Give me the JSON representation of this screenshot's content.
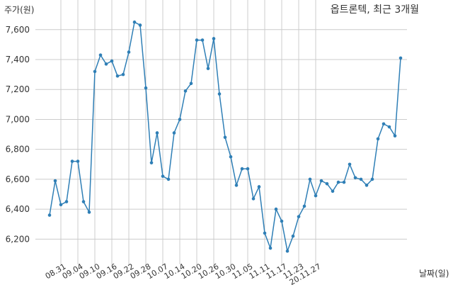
{
  "chart_data": {
    "type": "line",
    "title": "옵트론텍, 최근 3개월",
    "ylabel": "주가(원)",
    "xlabel": "날짜(일)",
    "ylim": [
      6050,
      7760
    ],
    "yticks": [
      6200,
      6400,
      6600,
      6800,
      7000,
      7200,
      7400,
      7600
    ],
    "ytick_labels": [
      "6,200",
      "6,400",
      "6,600",
      "6,800",
      "7,000",
      "7,200",
      "7,400",
      "7,600"
    ],
    "xtick_labels": [
      "08.31",
      "09.04",
      "09.10",
      "09.16",
      "09.22",
      "09.28",
      "10.07",
      "10.14",
      "10.20",
      "10.26",
      "10.30",
      "11.05",
      "11.11",
      "11.17",
      "11.23",
      "20.11.27"
    ],
    "xtick_positions": [
      2,
      5,
      8,
      11,
      14,
      17,
      20,
      23,
      26,
      29,
      32,
      35,
      38,
      41,
      44,
      47
    ],
    "grid": true,
    "line_color": "#2f7fb6",
    "series": [
      {
        "values": [
          6360,
          6590,
          6430,
          6450,
          6720,
          6720,
          6450,
          6380,
          7320,
          7430,
          7370,
          7390,
          7290,
          7300,
          7450,
          7650,
          7630,
          7210,
          6710,
          6910,
          6620,
          6600,
          6910,
          7000,
          7190,
          7240,
          7530,
          7530,
          7340,
          7540,
          7170,
          6880,
          6750,
          6560,
          6670,
          6670,
          6470,
          6550,
          6240,
          6140,
          6400,
          6320,
          6120,
          6220,
          6350,
          6420,
          6600,
          6490,
          6590,
          6570,
          6520,
          6580,
          6580,
          6700,
          6610,
          6600,
          6560,
          6600,
          6870,
          6970,
          6950,
          6890,
          7410
        ]
      }
    ]
  }
}
